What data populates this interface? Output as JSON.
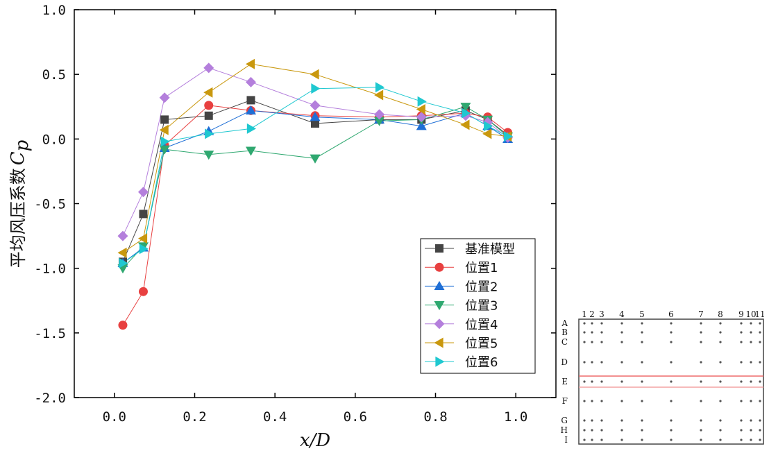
{
  "chart_data": {
    "type": "line",
    "xlabel": "x/D",
    "ylabel_prefix": "平均风压系数",
    "ylabel_symbol": "C",
    "ylabel_subscript": "p",
    "xlim": [
      -0.1,
      1.1
    ],
    "ylim": [
      -2.0,
      1.0
    ],
    "xticks": [
      0.0,
      0.2,
      0.4,
      0.6,
      0.8,
      1.0
    ],
    "xtick_labels": [
      "0.0",
      "0.2",
      "0.4",
      "0.6",
      "0.8",
      "1.0"
    ],
    "yticks": [
      1.0,
      0.5,
      0.0,
      -0.5,
      -1.0,
      -1.5,
      -2.0
    ],
    "ytick_labels": [
      "1.0",
      "0.5",
      "0.0",
      "-0.5",
      "-1.0",
      "-1.5",
      "-2.0"
    ],
    "legend_position": "bottom-right",
    "x": [
      0.021,
      0.072,
      0.125,
      0.235,
      0.34,
      0.5,
      0.66,
      0.765,
      0.875,
      0.93,
      0.98
    ],
    "series": [
      {
        "name": "基准模型",
        "color": "#444444",
        "marker": "square",
        "values": [
          -0.95,
          -0.58,
          0.15,
          0.18,
          0.3,
          0.12,
          0.15,
          0.15,
          0.22,
          0.15,
          0.03
        ]
      },
      {
        "name": "位置1",
        "color": "#e84040",
        "marker": "circle",
        "values": [
          -1.44,
          -1.18,
          -0.05,
          0.26,
          0.22,
          0.18,
          0.17,
          0.18,
          0.2,
          0.17,
          0.05
        ]
      },
      {
        "name": "位置2",
        "color": "#1f6fd6",
        "marker": "triangle-up",
        "values": [
          -0.96,
          -0.84,
          -0.07,
          0.06,
          0.22,
          0.17,
          0.15,
          0.1,
          0.2,
          0.1,
          0.0
        ]
      },
      {
        "name": "位置3",
        "color": "#2fa870",
        "marker": "triangle-down",
        "values": [
          -1.0,
          -0.83,
          -0.08,
          -0.12,
          -0.09,
          -0.15,
          0.14,
          0.15,
          0.25,
          0.15,
          0.02
        ]
      },
      {
        "name": "位置4",
        "color": "#b47fdc",
        "marker": "diamond",
        "values": [
          -0.75,
          -0.41,
          0.32,
          0.55,
          0.44,
          0.26,
          0.19,
          0.17,
          0.18,
          0.13,
          0.01
        ]
      },
      {
        "name": "位置5",
        "color": "#c9980e",
        "marker": "triangle-left",
        "values": [
          -0.88,
          -0.77,
          0.07,
          0.36,
          0.58,
          0.5,
          0.34,
          0.23,
          0.11,
          0.04,
          0.02
        ]
      },
      {
        "name": "位置6",
        "color": "#1fc8d0",
        "marker": "triangle-right",
        "values": [
          -0.96,
          -0.85,
          -0.02,
          0.04,
          0.08,
          0.39,
          0.4,
          0.29,
          0.2,
          0.1,
          0.02
        ]
      }
    ]
  },
  "diagram": {
    "column_labels": [
      "1",
      "2",
      "3",
      "4",
      "5",
      "6",
      "7",
      "8",
      "9",
      "10",
      "11"
    ],
    "row_labels": [
      "A",
      "B",
      "C",
      "D",
      "E",
      "F",
      "G",
      "H",
      "I"
    ]
  }
}
